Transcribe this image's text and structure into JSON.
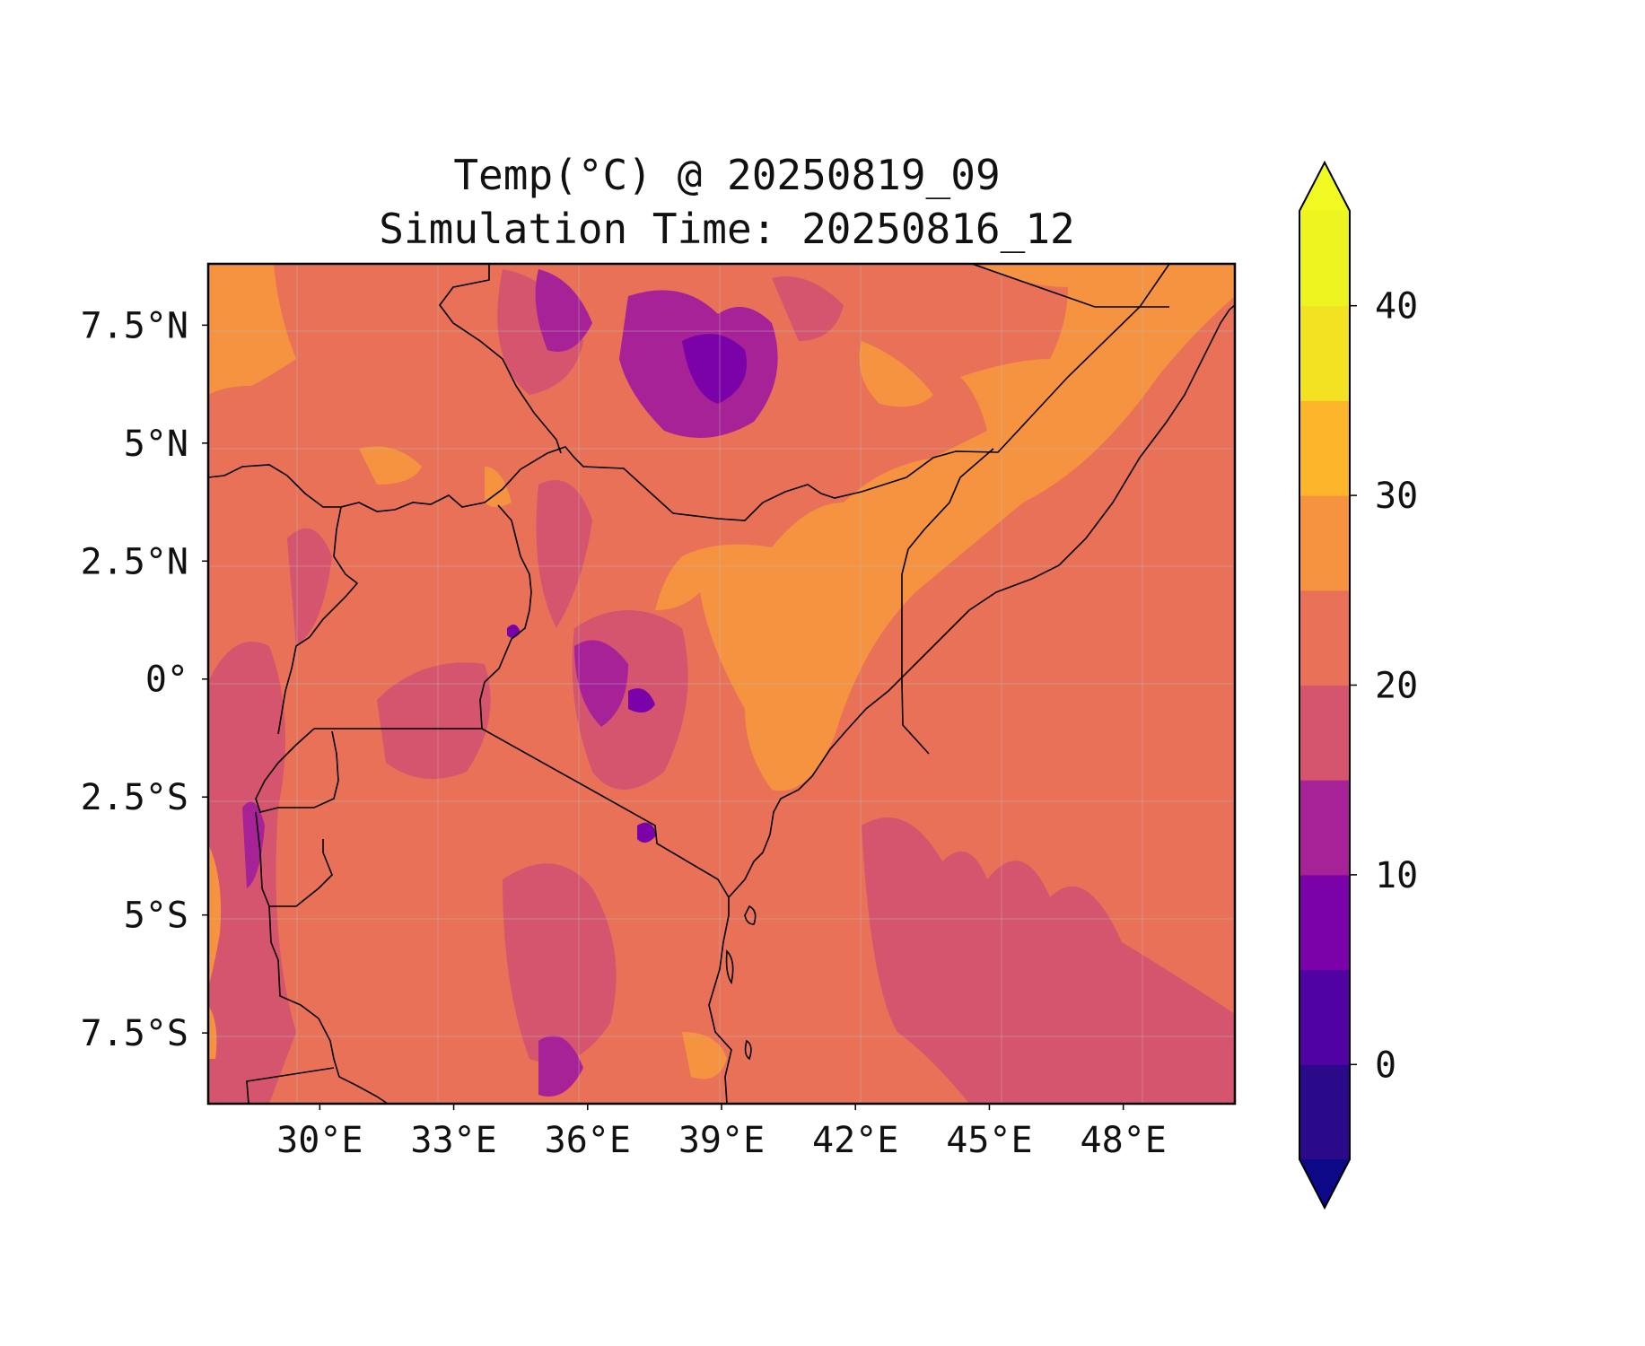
{
  "title": [
    "Temp(°C) @ 20250819_09",
    "Simulation Time: 20250816_12"
  ],
  "map": {
    "lon_range": [
      27.5,
      50.5
    ],
    "lat_range": [
      -9.0,
      8.8
    ],
    "x_ticks": [
      {
        "value": 30,
        "label": "30°E"
      },
      {
        "value": 33,
        "label": "33°E"
      },
      {
        "value": 36,
        "label": "36°E"
      },
      {
        "value": 39,
        "label": "39°E"
      },
      {
        "value": 42,
        "label": "42°E"
      },
      {
        "value": 45,
        "label": "45°E"
      },
      {
        "value": 48,
        "label": "48°E"
      }
    ],
    "y_ticks": [
      {
        "value": 7.5,
        "label": "7.5°N"
      },
      {
        "value": 5,
        "label": "5°N"
      },
      {
        "value": 2.5,
        "label": "2.5°N"
      },
      {
        "value": 0,
        "label": "0°"
      },
      {
        "value": -2.5,
        "label": "2.5°S"
      },
      {
        "value": -5,
        "label": "5°S"
      },
      {
        "value": -7.5,
        "label": "7.5°S"
      }
    ]
  },
  "colorbar": {
    "range": [
      -5,
      45
    ],
    "boundaries": [
      -5,
      0,
      5,
      10,
      15,
      20,
      25,
      30,
      35,
      40,
      45
    ],
    "colors": [
      "#1e0a8c",
      "#4e02a2",
      "#7e03a8",
      "#a92395",
      "#cc4778",
      "#e66c5c",
      "#f89441",
      "#fdc328",
      "#f0f921"
    ],
    "band_colors": [
      "#2b0a8a",
      "#5102a3",
      "#7a02a8",
      "#a72197",
      "#d5546e",
      "#e97158",
      "#f59340",
      "#fcb42a",
      "#f3e221",
      "#ecf520"
    ],
    "extend_low_color": "#0d0887",
    "extend_high_color": "#f0f921",
    "ticks": [
      {
        "value": 0,
        "label": "0"
      },
      {
        "value": 10,
        "label": "10"
      },
      {
        "value": 20,
        "label": "20"
      },
      {
        "value": 30,
        "label": "30"
      },
      {
        "value": 40,
        "label": "40"
      }
    ]
  }
}
